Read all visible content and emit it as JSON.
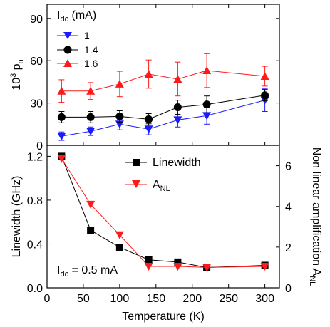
{
  "chart_data": [
    {
      "type": "line",
      "panel": "top",
      "ylabel": "10",
      "ylabel_sup": "3",
      "ylabel_main": " p",
      "ylabel_sub": "n",
      "ylim": [
        0,
        100
      ],
      "yticks": [
        0,
        30,
        60,
        90
      ],
      "xlim": [
        0,
        320
      ],
      "legend_title": "I",
      "legend_title_sub": "dc",
      "legend_title_rest": " (mA)",
      "legend_placement": "top-left",
      "grid": false,
      "series": [
        {
          "name": "1",
          "color": "#1a1aff",
          "marker": "triangle-down",
          "x": [
            20,
            60,
            100,
            140,
            180,
            220,
            300
          ],
          "y": [
            6.5,
            10,
            15,
            11.5,
            18,
            21,
            32
          ],
          "err": [
            3,
            3,
            4,
            4,
            5,
            6,
            8
          ]
        },
        {
          "name": "1.4",
          "color": "#000000",
          "marker": "circle",
          "x": [
            20,
            60,
            100,
            140,
            180,
            220,
            300
          ],
          "y": [
            20,
            20,
            20.5,
            18.5,
            27,
            29,
            35.5
          ],
          "err": [
            4,
            4,
            4,
            4,
            5,
            6,
            4
          ]
        },
        {
          "name": "1.6",
          "color": "#ff1a1a",
          "marker": "triangle-up",
          "x": [
            20,
            60,
            100,
            140,
            180,
            220,
            300
          ],
          "y": [
            38.5,
            38.5,
            43.5,
            50.5,
            47,
            53,
            49
          ],
          "err": [
            8,
            6,
            9,
            10,
            12,
            12,
            7
          ]
        }
      ]
    },
    {
      "type": "line",
      "panel": "bottom",
      "xlabel": "Temperature (K)",
      "xlim": [
        0,
        320
      ],
      "xticks": [
        0,
        50,
        100,
        150,
        200,
        250,
        300
      ],
      "ylabel": "Linewidth (GHz)",
      "ylim": [
        0,
        1.3
      ],
      "yticks": [
        "0.0",
        "0.4",
        "0.8",
        "1.2"
      ],
      "y2label": "Non linear amplification A",
      "y2label_sub": "NL",
      "y2lim": [
        0,
        7
      ],
      "y2ticks": [
        0,
        2,
        4,
        6
      ],
      "annotation": "I",
      "annotation_sub": "dc",
      "annotation_rest": " = 0.5 mA",
      "legend_placement": "top-right",
      "grid": false,
      "series": [
        {
          "name": "Linewidth",
          "color": "#000000",
          "marker": "square",
          "axis": "left",
          "x": [
            20,
            60,
            100,
            140,
            180,
            220,
            300
          ],
          "y": [
            1.2,
            0.525,
            0.37,
            0.255,
            0.235,
            0.185,
            0.205
          ]
        },
        {
          "name": "A",
          "name_sub": "NL",
          "color": "#ff1a1a",
          "marker": "triangle-down",
          "axis": "right",
          "x": [
            20,
            60,
            100,
            140,
            180,
            220,
            300
          ],
          "y": [
            6.35,
            4.1,
            2.6,
            1.05,
            1.05,
            1.0,
            1.05
          ]
        }
      ]
    }
  ]
}
